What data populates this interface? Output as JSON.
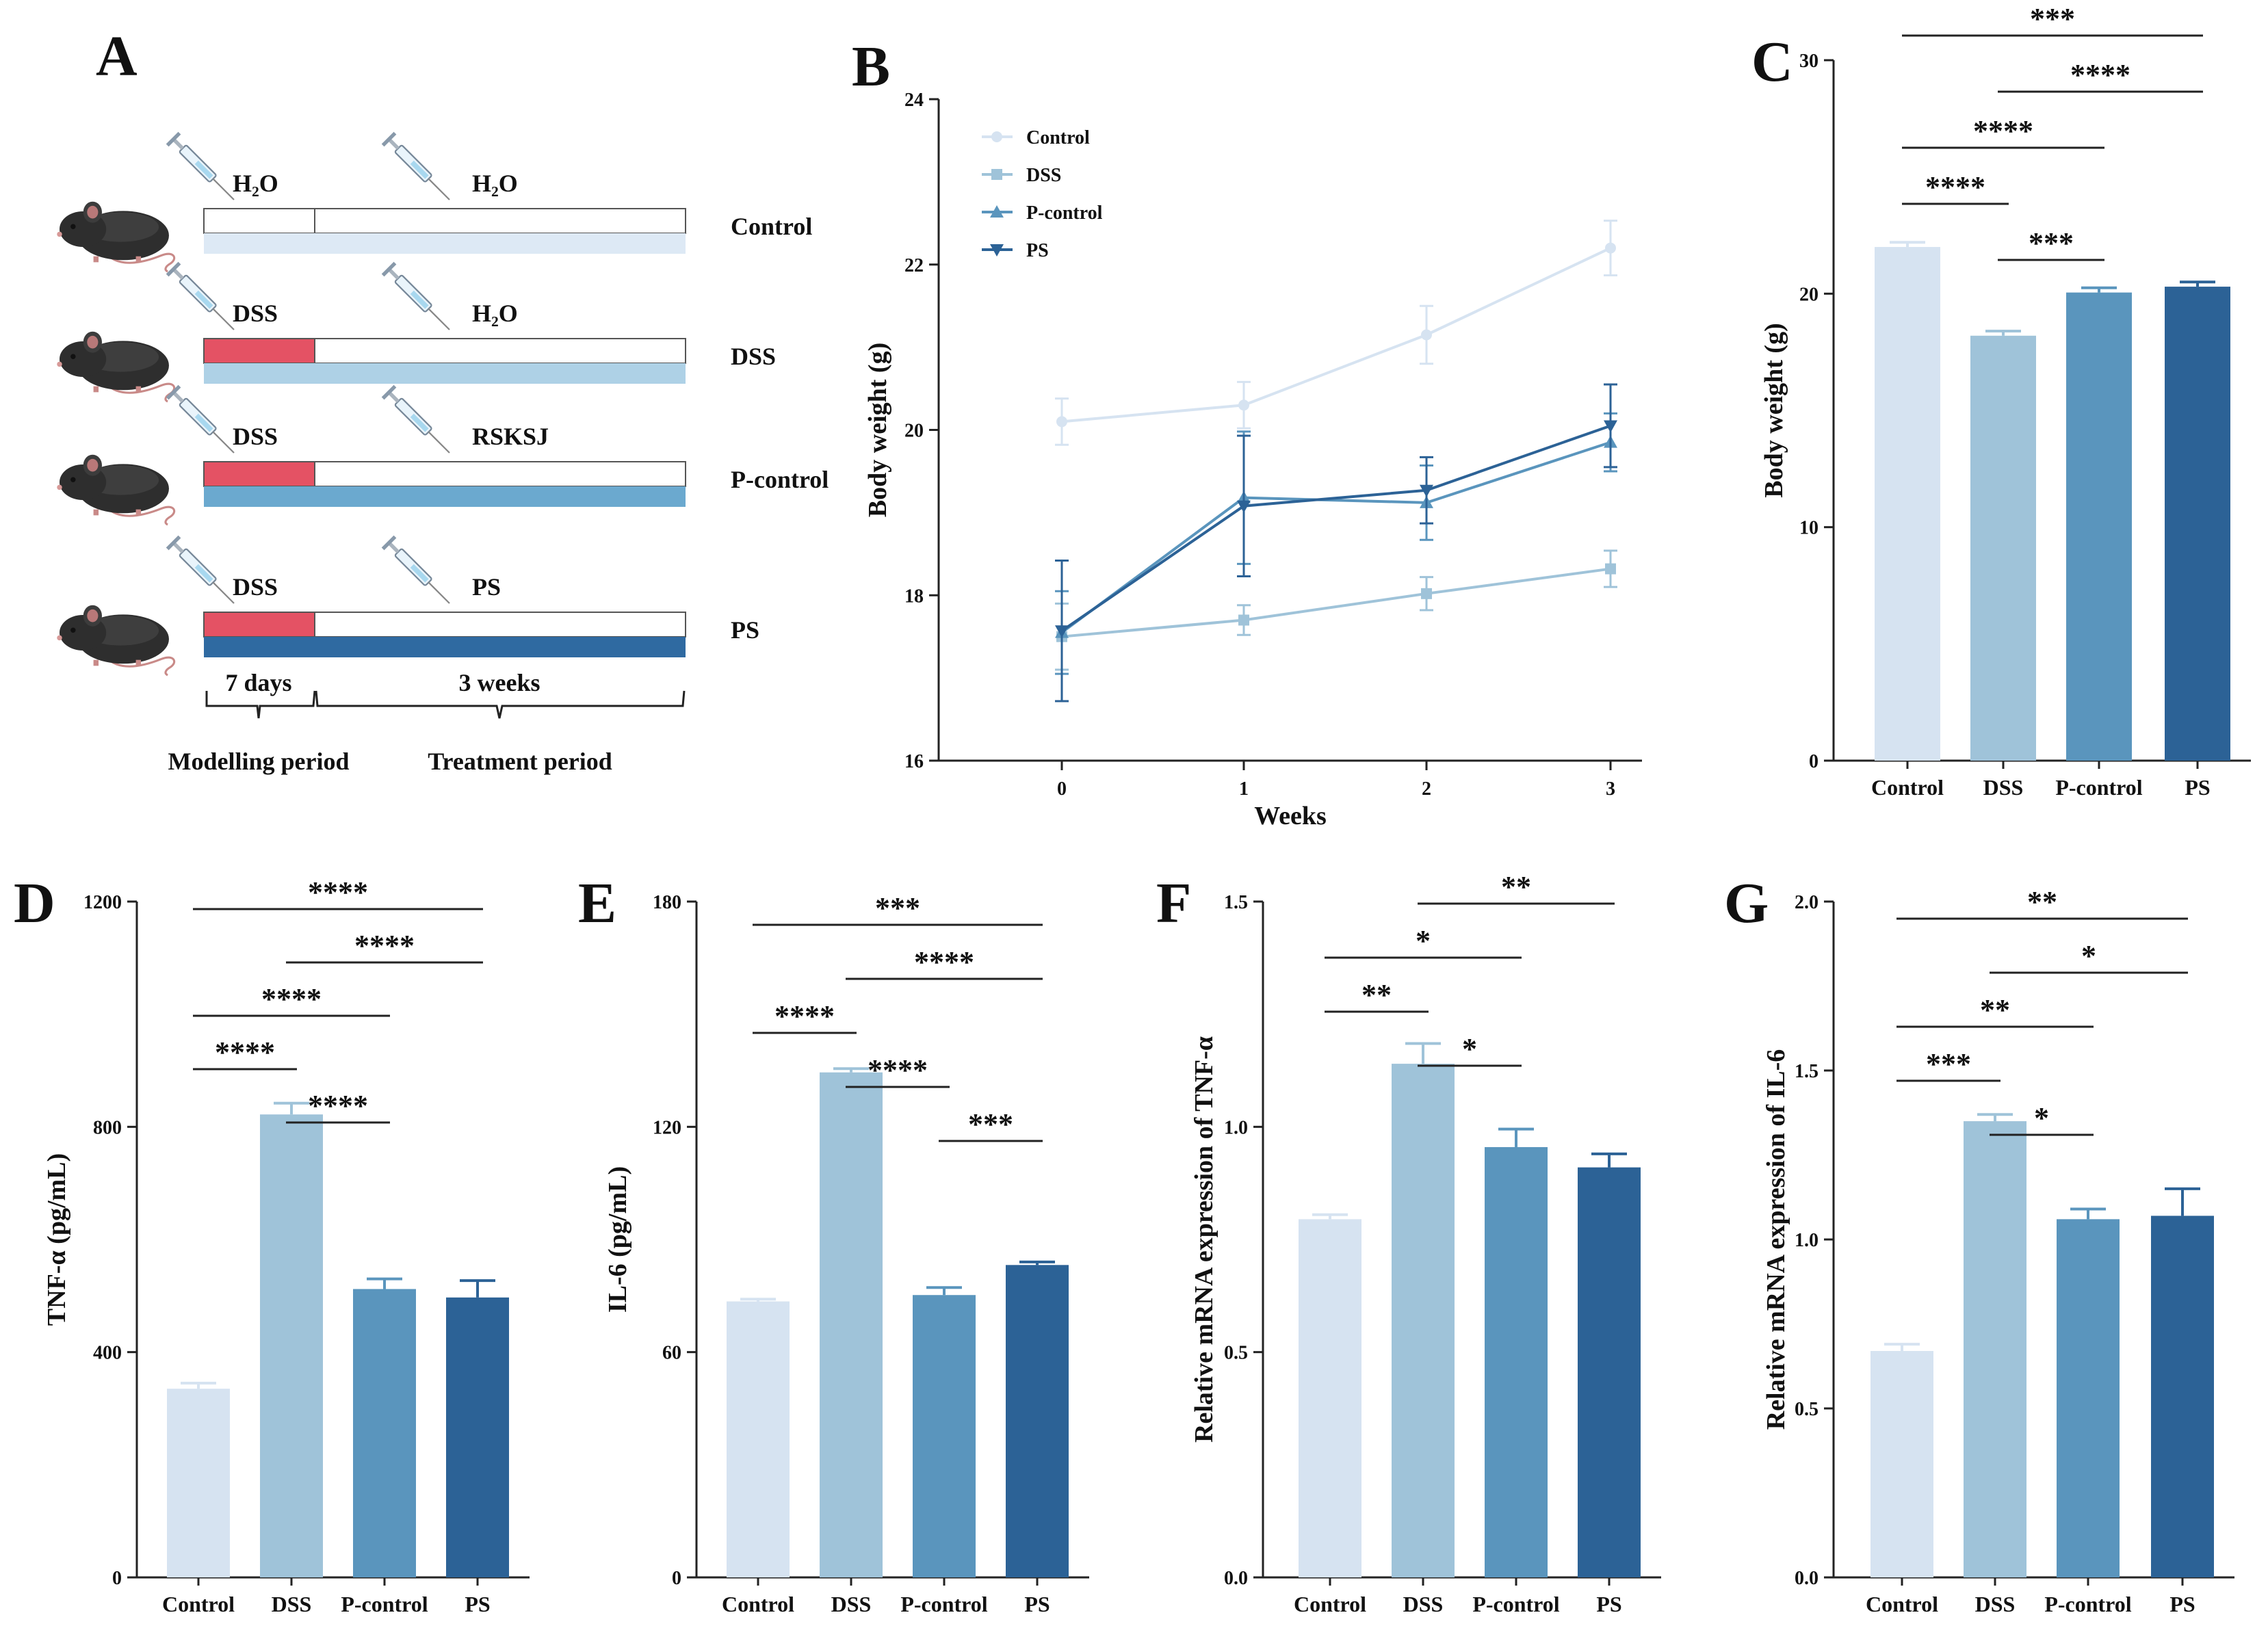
{
  "panel_labels": [
    "A",
    "B",
    "C",
    "D",
    "E",
    "F",
    "G"
  ],
  "colors": {
    "control": "#d6e3f1",
    "dss": "#9fc3d9",
    "pcontrol": "#5a95bd",
    "ps": "#2c6296",
    "dss_bar": "#e45264"
  },
  "icons": [
    "mouse-icon",
    "syringe-icon"
  ],
  "schema": {
    "rows": [
      {
        "group": "Control",
        "first_agent": "H₂O",
        "second_agent": "H₂O",
        "color": "#dde9f5",
        "modelling_fill": "#ffffff"
      },
      {
        "group": "DSS",
        "first_agent": "DSS",
        "second_agent": "H₂O",
        "color": "#aed1e6",
        "modelling_fill": "#e45264"
      },
      {
        "group": "P-control",
        "first_agent": "DSS",
        "second_agent": "RSKSJ",
        "color": "#6ba9cf",
        "modelling_fill": "#e45264"
      },
      {
        "group": "PS",
        "first_agent": "DSS",
        "second_agent": "PS",
        "color": "#2f6aa1",
        "modelling_fill": "#e45264"
      }
    ],
    "durations": {
      "modelling": "7 days",
      "treatment": "3 weeks"
    },
    "periods": {
      "modelling": "Modelling period",
      "treatment": "Treatment period"
    }
  },
  "chart_data": [
    {
      "panel": "B",
      "type": "line",
      "xlabel": "Weeks",
      "ylabel": "Body weight (g)",
      "x": [
        0,
        1,
        2,
        3
      ],
      "xticks": [
        "0",
        "1",
        "2",
        "3"
      ],
      "ylim": [
        16,
        24
      ],
      "yticks": [
        "16",
        "18",
        "20",
        "22",
        "24"
      ],
      "legend_position": "top-left",
      "series": [
        {
          "name": "Control",
          "color": "#d6e3f1",
          "marker": "circle",
          "values": [
            20.1,
            20.3,
            21.15,
            22.2
          ],
          "err": [
            0.28,
            0.28,
            0.35,
            0.33
          ]
        },
        {
          "name": "DSS",
          "color": "#9fc3d9",
          "marker": "square",
          "values": [
            17.5,
            17.7,
            18.02,
            18.32
          ],
          "err": [
            0.4,
            0.18,
            0.2,
            0.22
          ]
        },
        {
          "name": "P-control",
          "color": "#5a95bd",
          "marker": "triangle-up",
          "values": [
            17.55,
            19.18,
            19.12,
            19.85
          ],
          "err": [
            0.5,
            0.8,
            0.45,
            0.35
          ]
        },
        {
          "name": "PS",
          "color": "#2c6296",
          "marker": "triangle-down",
          "values": [
            17.57,
            19.08,
            19.27,
            20.05
          ],
          "err": [
            0.85,
            0.85,
            0.4,
            0.5
          ]
        }
      ]
    },
    {
      "panel": "C",
      "type": "bar",
      "ylabel": "Body weight (g)",
      "categories": [
        "Control",
        "DSS",
        "P-control",
        "PS"
      ],
      "values": [
        22.0,
        18.2,
        20.05,
        20.3
      ],
      "err": [
        0.2,
        0.2,
        0.2,
        0.2
      ],
      "ylim": [
        0,
        30
      ],
      "yticks": [
        "0",
        "10",
        "20",
        "30"
      ],
      "significance": [
        {
          "from": 0,
          "to": 3,
          "label": "***"
        },
        {
          "from": 1,
          "to": 3,
          "label": "****"
        },
        {
          "from": 0,
          "to": 2,
          "label": "****"
        },
        {
          "from": 0,
          "to": 1,
          "label": "****"
        },
        {
          "from": 1,
          "to": 2,
          "label": "***"
        }
      ]
    },
    {
      "panel": "D",
      "type": "bar",
      "ylabel": "TNF-α (pg/mL)",
      "categories": [
        "Control",
        "DSS",
        "P-control",
        "PS"
      ],
      "values": [
        335,
        822,
        512,
        497
      ],
      "err": [
        10,
        20,
        18,
        30
      ],
      "ylim": [
        0,
        1200
      ],
      "yticks": [
        "0",
        "400",
        "800",
        "1200"
      ],
      "significance": [
        {
          "from": 0,
          "to": 3,
          "label": "****"
        },
        {
          "from": 1,
          "to": 3,
          "label": "****"
        },
        {
          "from": 0,
          "to": 2,
          "label": "****"
        },
        {
          "from": 0,
          "to": 1,
          "label": "****"
        },
        {
          "from": 1,
          "to": 2,
          "label": "****"
        }
      ]
    },
    {
      "panel": "E",
      "type": "bar",
      "ylabel": "IL-6 (pg/mL)",
      "categories": [
        "Control",
        "DSS",
        "P-control",
        "PS"
      ],
      "values": [
        73.5,
        134.5,
        75.2,
        83.2
      ],
      "err": [
        0.6,
        1.0,
        2.0,
        0.8
      ],
      "ylim": [
        0,
        180
      ],
      "yticks": [
        "0",
        "60",
        "120",
        "180"
      ],
      "significance": [
        {
          "from": 0,
          "to": 3,
          "label": "***"
        },
        {
          "from": 1,
          "to": 3,
          "label": "****"
        },
        {
          "from": 0,
          "to": 1,
          "label": "****"
        },
        {
          "from": 1,
          "to": 2,
          "label": "****"
        },
        {
          "from": 2,
          "to": 3,
          "label": "***"
        }
      ]
    },
    {
      "panel": "F",
      "type": "bar",
      "ylabel": "Relative mRNA expression of TNF-α",
      "categories": [
        "Control",
        "DSS",
        "P-control",
        "PS"
      ],
      "values": [
        0.795,
        1.14,
        0.955,
        0.91
      ],
      "err": [
        0.01,
        0.045,
        0.04,
        0.03
      ],
      "ylim": [
        0,
        1.5
      ],
      "yticks": [
        "0.0",
        "0.5",
        "1.0",
        "1.5"
      ],
      "significance": [
        {
          "from": 1,
          "to": 3,
          "label": "**"
        },
        {
          "from": 0,
          "to": 2,
          "label": "*"
        },
        {
          "from": 0,
          "to": 1,
          "label": "**"
        },
        {
          "from": 1,
          "to": 2,
          "label": "*"
        }
      ]
    },
    {
      "panel": "G",
      "type": "bar",
      "ylabel": "Relative mRNA expression of IL-6",
      "categories": [
        "Control",
        "DSS",
        "P-control",
        "PS"
      ],
      "values": [
        0.67,
        1.35,
        1.06,
        1.07
      ],
      "err": [
        0.02,
        0.02,
        0.03,
        0.08
      ],
      "ylim": [
        0,
        2.0
      ],
      "yticks": [
        "0.0",
        "0.5",
        "1.0",
        "1.5",
        "2.0"
      ],
      "significance": [
        {
          "from": 0,
          "to": 3,
          "label": "**"
        },
        {
          "from": 1,
          "to": 3,
          "label": "*"
        },
        {
          "from": 0,
          "to": 2,
          "label": "**"
        },
        {
          "from": 0,
          "to": 1,
          "label": "***"
        },
        {
          "from": 1,
          "to": 2,
          "label": "*"
        }
      ]
    }
  ]
}
